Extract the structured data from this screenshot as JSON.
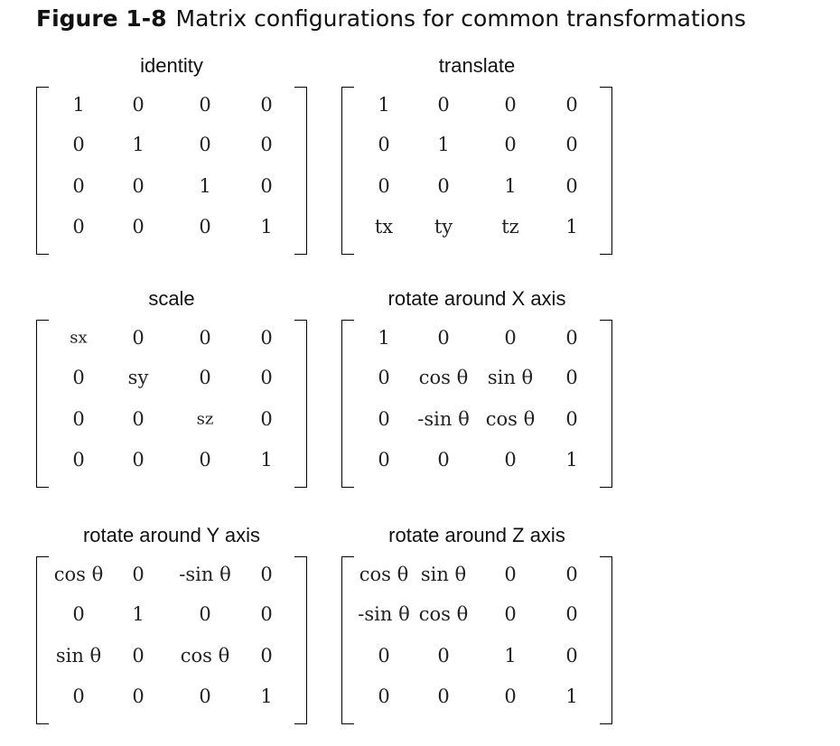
{
  "figure": {
    "number": "Figure 1-8",
    "caption": "Matrix configurations for common transformations"
  },
  "matrices": [
    {
      "id": "identity",
      "label": "identity",
      "rows": [
        [
          "1",
          "0",
          "0",
          "0"
        ],
        [
          "0",
          "1",
          "0",
          "0"
        ],
        [
          "0",
          "0",
          "1",
          "0"
        ],
        [
          "0",
          "0",
          "0",
          "1"
        ]
      ]
    },
    {
      "id": "translate",
      "label": "translate",
      "rows": [
        [
          "1",
          "0",
          "0",
          "0"
        ],
        [
          "0",
          "1",
          "0",
          "0"
        ],
        [
          "0",
          "0",
          "1",
          "0"
        ],
        [
          "tx",
          "ty",
          "tz",
          "1"
        ]
      ]
    },
    {
      "id": "scale",
      "label": "scale",
      "rows": [
        [
          "sx",
          "0",
          "0",
          "0"
        ],
        [
          "0",
          "sy",
          "0",
          "0"
        ],
        [
          "0",
          "0",
          "sz",
          "0"
        ],
        [
          "0",
          "0",
          "0",
          "1"
        ]
      ]
    },
    {
      "id": "rotate-x",
      "label": "rotate around X axis",
      "rows": [
        [
          "1",
          "0",
          "0",
          "0"
        ],
        [
          "0",
          "cos θ",
          "sin θ",
          "0"
        ],
        [
          "0",
          "-sin θ",
          "cos θ",
          "0"
        ],
        [
          "0",
          "0",
          "0",
          "1"
        ]
      ]
    },
    {
      "id": "rotate-y",
      "label": "rotate around Y axis",
      "rows": [
        [
          "cos θ",
          "0",
          "-sin θ",
          "0"
        ],
        [
          "0",
          "1",
          "0",
          "0"
        ],
        [
          "sin θ",
          "0",
          "cos θ",
          "0"
        ],
        [
          "0",
          "0",
          "0",
          "1"
        ]
      ]
    },
    {
      "id": "rotate-z",
      "label": "rotate around Z axis",
      "rows": [
        [
          "cos θ",
          "sin θ",
          "0",
          "0"
        ],
        [
          "-sin θ",
          "cos θ",
          "0",
          "0"
        ],
        [
          "0",
          "0",
          "1",
          "0"
        ],
        [
          "0",
          "0",
          "0",
          "1"
        ]
      ]
    }
  ]
}
